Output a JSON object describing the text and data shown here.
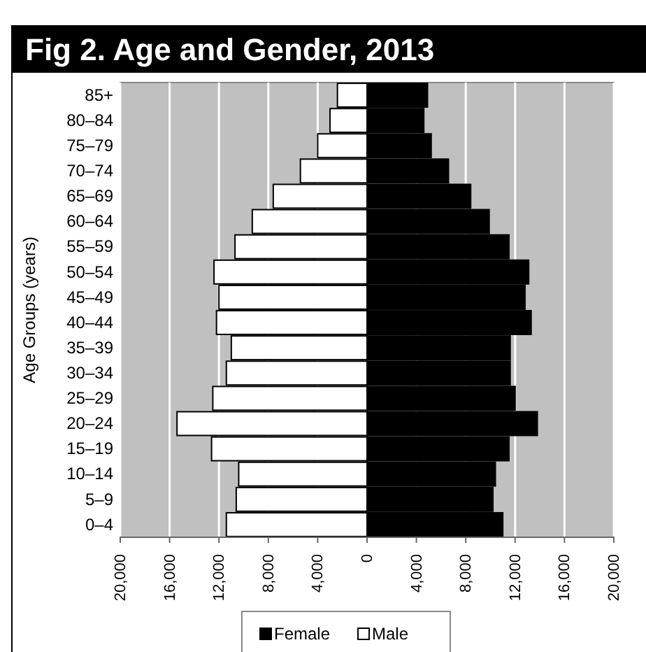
{
  "chart_data": {
    "type": "bar",
    "orientation": "horizontal",
    "title": "Fig 2. Age and Gender, 2013",
    "ylabel": "Age Groups (years)",
    "categories": [
      "85+",
      "80–84",
      "75–79",
      "70–74",
      "65–69",
      "60–64",
      "55–59",
      "50–54",
      "45–49",
      "40–44",
      "35–39",
      "30–34",
      "25–29",
      "20–24",
      "15–19",
      "10–14",
      "5–9",
      "0–4"
    ],
    "series": [
      {
        "name": "Female",
        "color": "#000000",
        "values": [
          4900,
          4600,
          5200,
          6600,
          8400,
          9900,
          11500,
          13100,
          12800,
          13300,
          11600,
          11600,
          12000,
          13800,
          11500,
          10400,
          10200,
          11000
        ]
      },
      {
        "name": "Male",
        "color": "#ffffff",
        "values": [
          -2400,
          -3000,
          -4000,
          -5400,
          -7600,
          -9300,
          -10700,
          -12400,
          -12000,
          -12200,
          -11000,
          -11400,
          -12500,
          -15400,
          -12600,
          -10400,
          -10600,
          -11400
        ]
      }
    ],
    "xlim": [
      -20000,
      20000
    ],
    "xticks": [
      {
        "value": -20000,
        "label": "20,000"
      },
      {
        "value": -16000,
        "label": "16,000"
      },
      {
        "value": -12000,
        "label": "12,000"
      },
      {
        "value": -8000,
        "label": "8,000"
      },
      {
        "value": -4000,
        "label": "4,000"
      },
      0,
      {
        "value": 4000,
        "label": "4,000"
      },
      {
        "value": 8000,
        "label": "8,000"
      },
      {
        "value": 12000,
        "label": "12,000"
      },
      {
        "value": 16000,
        "label": "16,000"
      },
      {
        "value": 20000,
        "label": "20,000"
      }
    ],
    "grid": "x",
    "legend": "bottom",
    "stacked": true
  }
}
